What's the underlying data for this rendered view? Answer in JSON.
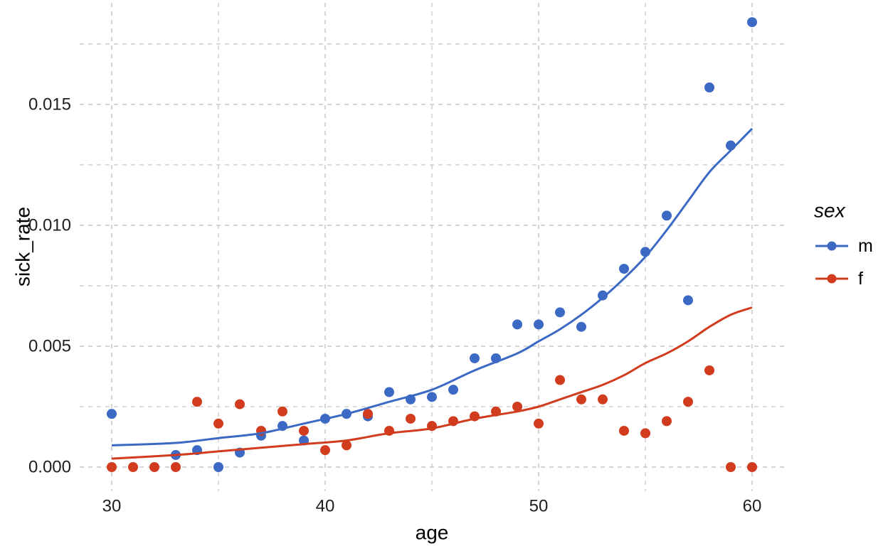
{
  "chart_data": {
    "type": "scatter",
    "title": "",
    "xlabel": "age",
    "ylabel": "sick_rate",
    "legend_title": "sex",
    "legend_position": "right",
    "grid": "dashed, light gray, major and minor",
    "xlim": [
      28.5,
      61.5
    ],
    "ylim": [
      -0.001,
      0.0192
    ],
    "x_ticks": [
      30,
      40,
      50,
      60
    ],
    "x_tick_labels": [
      "30",
      "40",
      "50",
      "60"
    ],
    "x_minor_ticks": [
      35,
      45,
      55
    ],
    "y_ticks": [
      0.0,
      0.005,
      0.01,
      0.015
    ],
    "y_tick_labels": [
      "0.000",
      "0.005",
      "0.010",
      "0.015"
    ],
    "y_minor_ticks": [
      0.0025,
      0.0075,
      0.0125,
      0.0175
    ],
    "series": [
      {
        "name": "m",
        "color": "#3B69C4",
        "points": [
          [
            30,
            0.0022
          ],
          [
            33,
            0.0005
          ],
          [
            34,
            0.0007
          ],
          [
            35,
            0.0
          ],
          [
            36,
            0.0006
          ],
          [
            37,
            0.0013
          ],
          [
            38,
            0.0017
          ],
          [
            39,
            0.0011
          ],
          [
            40,
            0.002
          ],
          [
            41,
            0.0022
          ],
          [
            42,
            0.0021
          ],
          [
            43,
            0.0031
          ],
          [
            44,
            0.0028
          ],
          [
            45,
            0.0029
          ],
          [
            46,
            0.0032
          ],
          [
            47,
            0.0045
          ],
          [
            48,
            0.0045
          ],
          [
            49,
            0.0059
          ],
          [
            50,
            0.0059
          ],
          [
            51,
            0.0064
          ],
          [
            52,
            0.0058
          ],
          [
            53,
            0.0071
          ],
          [
            54,
            0.0082
          ],
          [
            55,
            0.0089
          ],
          [
            56,
            0.0104
          ],
          [
            57,
            0.0069
          ],
          [
            58,
            0.0157
          ],
          [
            59,
            0.0133
          ],
          [
            60,
            0.0184
          ]
        ],
        "smooth_line": [
          [
            30,
            0.0009
          ],
          [
            33,
            0.001
          ],
          [
            35,
            0.0012
          ],
          [
            37,
            0.0014
          ],
          [
            39,
            0.0018
          ],
          [
            41,
            0.0022
          ],
          [
            43,
            0.0027
          ],
          [
            45,
            0.0032
          ],
          [
            47,
            0.004
          ],
          [
            49,
            0.0047
          ],
          [
            50,
            0.0052
          ],
          [
            51,
            0.0057
          ],
          [
            52,
            0.0063
          ],
          [
            53,
            0.007
          ],
          [
            54,
            0.0078
          ],
          [
            55,
            0.0087
          ],
          [
            56,
            0.0098
          ],
          [
            57,
            0.011
          ],
          [
            58,
            0.0122
          ],
          [
            59,
            0.0131
          ],
          [
            60,
            0.014
          ]
        ]
      },
      {
        "name": "f",
        "color": "#D23C1E",
        "points": [
          [
            30,
            0.0
          ],
          [
            31,
            0.0
          ],
          [
            32,
            0.0
          ],
          [
            33,
            0.0
          ],
          [
            34,
            0.0027
          ],
          [
            35,
            0.0018
          ],
          [
            36,
            0.0026
          ],
          [
            37,
            0.0015
          ],
          [
            38,
            0.0023
          ],
          [
            39,
            0.0015
          ],
          [
            40,
            0.0007
          ],
          [
            41,
            0.0009
          ],
          [
            42,
            0.0022
          ],
          [
            43,
            0.0015
          ],
          [
            44,
            0.002
          ],
          [
            45,
            0.0017
          ],
          [
            46,
            0.0019
          ],
          [
            47,
            0.0021
          ],
          [
            48,
            0.0023
          ],
          [
            49,
            0.0025
          ],
          [
            50,
            0.0018
          ],
          [
            51,
            0.0036
          ],
          [
            52,
            0.0028
          ],
          [
            53,
            0.0028
          ],
          [
            54,
            0.0015
          ],
          [
            55,
            0.0014
          ],
          [
            56,
            0.0019
          ],
          [
            57,
            0.0027
          ],
          [
            58,
            0.004
          ],
          [
            59,
            0.0
          ],
          [
            60,
            0.0
          ]
        ],
        "smooth_line": [
          [
            30,
            0.00035
          ],
          [
            33,
            0.0005
          ],
          [
            35,
            0.00065
          ],
          [
            37,
            0.0008
          ],
          [
            39,
            0.00095
          ],
          [
            41,
            0.0011
          ],
          [
            43,
            0.0014
          ],
          [
            45,
            0.0016
          ],
          [
            47,
            0.002
          ],
          [
            49,
            0.0023
          ],
          [
            50,
            0.0025
          ],
          [
            51,
            0.0028
          ],
          [
            52,
            0.0031
          ],
          [
            53,
            0.0034
          ],
          [
            54,
            0.0038
          ],
          [
            55,
            0.0043
          ],
          [
            56,
            0.0047
          ],
          [
            57,
            0.0052
          ],
          [
            58,
            0.0058
          ],
          [
            59,
            0.0063
          ],
          [
            60,
            0.0066
          ]
        ]
      }
    ]
  },
  "style": {
    "background_color": "#FFFFFF",
    "grid_color": "#C8C8C8",
    "tick_label_color": "#1F1F1F",
    "text_color": "#000000"
  }
}
